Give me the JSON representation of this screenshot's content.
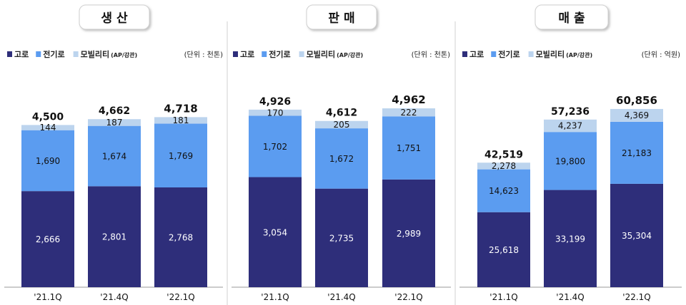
{
  "legend_items": [
    {
      "label": "고로",
      "color": "#2e2e7a"
    },
    {
      "label": "전기로",
      "color": "#5b9cf0"
    },
    {
      "label": "모빌리티",
      "suffix": "(AP/강관)",
      "color": "#bcd4ee"
    }
  ],
  "chart_data": [
    {
      "type": "bar",
      "stacked": true,
      "title": "생 산",
      "unit": "(단위 : 천톤)",
      "categories": [
        "'21.1Q",
        "'21.4Q",
        "'22.1Q"
      ],
      "series": [
        {
          "name": "고로",
          "values": [
            2666,
            2801,
            2768
          ],
          "color": "#2e2e7a"
        },
        {
          "name": "전기로",
          "values": [
            1690,
            1674,
            1769
          ],
          "color": "#5b9cf0"
        },
        {
          "name": "모빌리티",
          "values": [
            144,
            187,
            181
          ],
          "color": "#bcd4ee"
        }
      ],
      "totals": [
        4500,
        4662,
        4718
      ],
      "value_labels": [
        [
          "2,666",
          "2,801",
          "2,768"
        ],
        [
          "1,690",
          "1,674",
          "1,769"
        ],
        [
          "144",
          "187",
          "181"
        ]
      ],
      "total_labels": [
        "4,500",
        "4,662",
        "4,718"
      ]
    },
    {
      "type": "bar",
      "stacked": true,
      "title": "판 매",
      "unit": "(단위 : 천톤)",
      "categories": [
        "'21.1Q",
        "'21.4Q",
        "'22.1Q"
      ],
      "series": [
        {
          "name": "고로",
          "values": [
            3054,
            2735,
            2989
          ],
          "color": "#2e2e7a"
        },
        {
          "name": "전기로",
          "values": [
            1702,
            1672,
            1751
          ],
          "color": "#5b9cf0"
        },
        {
          "name": "모빌리티",
          "values": [
            170,
            205,
            222
          ],
          "color": "#bcd4ee"
        }
      ],
      "totals": [
        4926,
        4612,
        4962
      ],
      "value_labels": [
        [
          "3,054",
          "2,735",
          "2,989"
        ],
        [
          "1,702",
          "1,672",
          "1,751"
        ],
        [
          "170",
          "205",
          "222"
        ]
      ],
      "total_labels": [
        "4,926",
        "4,612",
        "4,962"
      ]
    },
    {
      "type": "bar",
      "stacked": true,
      "title": "매 출",
      "unit": "(단위 : 억원)",
      "categories": [
        "'21.1Q",
        "'21.4Q",
        "'22.1Q"
      ],
      "series": [
        {
          "name": "고로",
          "values": [
            25618,
            33199,
            35304
          ],
          "color": "#2e2e7a"
        },
        {
          "name": "전기로",
          "values": [
            14623,
            19800,
            21183
          ],
          "color": "#5b9cf0"
        },
        {
          "name": "모빌리티",
          "values": [
            2278,
            4237,
            4369
          ],
          "color": "#bcd4ee"
        }
      ],
      "totals": [
        42519,
        57236,
        60856
      ],
      "value_labels": [
        [
          "25,618",
          "33,199",
          "35,304"
        ],
        [
          "14,623",
          "19,800",
          "21,183"
        ],
        [
          "2,278",
          "4,237",
          "4,369"
        ]
      ],
      "total_labels": [
        "42,519",
        "57,236",
        "60,856"
      ]
    }
  ]
}
